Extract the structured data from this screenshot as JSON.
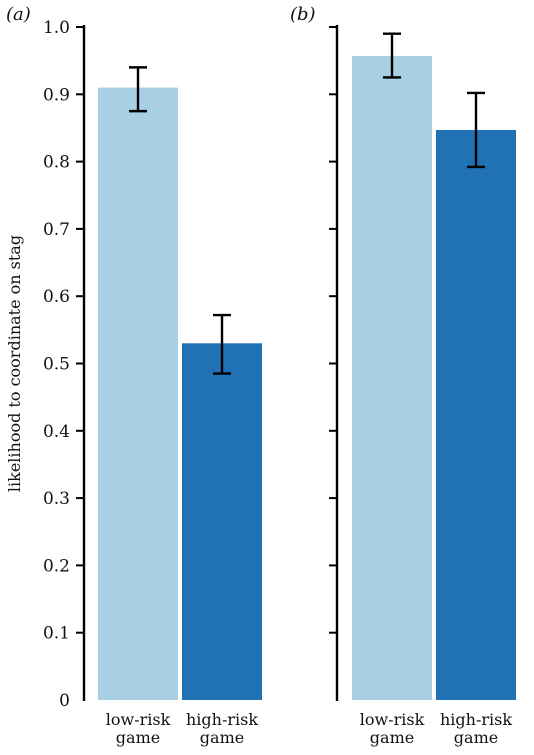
{
  "chart_data": [
    {
      "type": "bar",
      "panel_label": "(a)",
      "categories": [
        [
          "low-risk",
          "game"
        ],
        [
          "high-risk",
          "game"
        ]
      ],
      "values": [
        0.91,
        0.53
      ],
      "error_low": [
        0.875,
        0.485
      ],
      "error_high": [
        0.94,
        0.572
      ],
      "colors": [
        "#a9cfe4",
        "#2171b5"
      ],
      "ylabel": "likelihood to coordinate on stag",
      "ylim": [
        0,
        1.0
      ],
      "yticks": [
        "0",
        "0.1",
        "0.2",
        "0.3",
        "0.4",
        "0.5",
        "0.6",
        "0.7",
        "0.8",
        "0.9",
        "1.0"
      ],
      "grid": false
    },
    {
      "type": "bar",
      "panel_label": "(b)",
      "categories": [
        [
          "low-risk",
          "game"
        ],
        [
          "high-risk",
          "game"
        ]
      ],
      "values": [
        0.957,
        0.847
      ],
      "error_low": [
        0.925,
        0.792
      ],
      "error_high": [
        0.99,
        0.902
      ],
      "colors": [
        "#a9cfe4",
        "#2171b5"
      ],
      "ylabel": "",
      "ylim": [
        0,
        1.0
      ],
      "yticks": [
        "0",
        "0.1",
        "0.2",
        "0.3",
        "0.4",
        "0.5",
        "0.6",
        "0.7",
        "0.8",
        "0.9",
        "1.0"
      ],
      "grid": false
    }
  ]
}
